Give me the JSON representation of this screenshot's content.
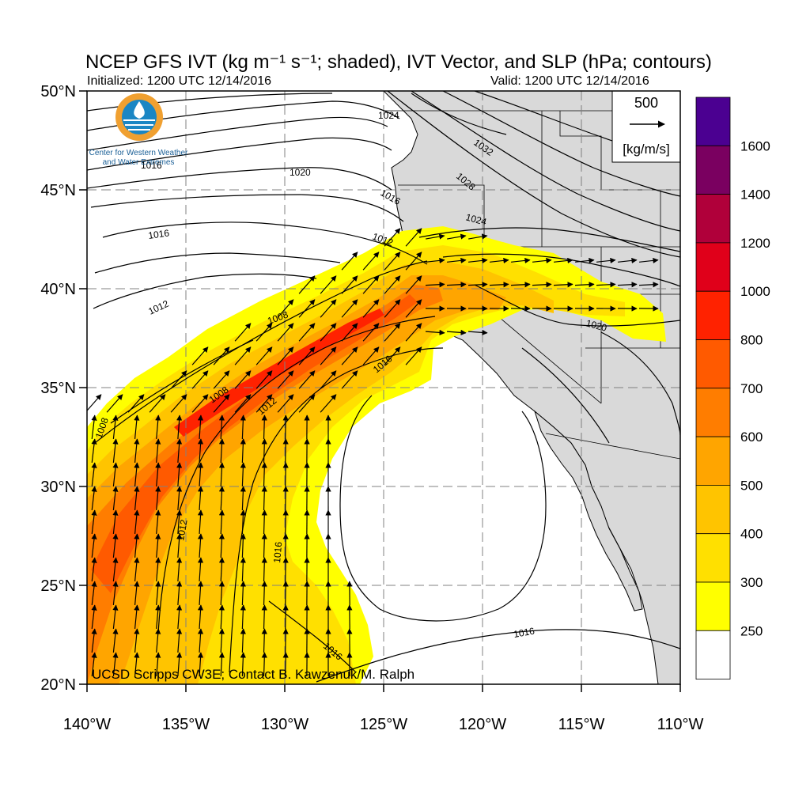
{
  "header": {
    "title": "NCEP GFS IVT (kg m⁻¹ s⁻¹; shaded), IVT Vector, and SLP (hPa; contours)",
    "initialized": "Initialized: 1200 UTC 12/14/2016",
    "valid": "Valid: 1200 UTC 12/14/2016"
  },
  "logo": {
    "line1": "Center for Western Weather",
    "line2": "and Water Extremes",
    "icon": "water-drop-sun-icon",
    "colors": {
      "ring": "#f0a030",
      "water": "#1a86c4",
      "text": "#1a5f96"
    }
  },
  "credit": "UCSD Scripps CW3E; Contact B. Kawzenuk/M. Ralph",
  "vector_key": {
    "value": "500",
    "unit": "[kg/m/s]"
  },
  "axes": {
    "lon_labels": [
      "140°W",
      "135°W",
      "130°W",
      "125°W",
      "120°W",
      "115°W",
      "110°W"
    ],
    "lat_labels": [
      "50°N",
      "45°N",
      "40°N",
      "35°N",
      "30°N",
      "25°N",
      "20°N"
    ],
    "lon_range": [
      -140,
      -110
    ],
    "lat_range": [
      20,
      50
    ],
    "grid": "dashed 5°"
  },
  "colorbar": {
    "labels": [
      "1600",
      "1400",
      "1200",
      "1000",
      "800",
      "700",
      "600",
      "500",
      "400",
      "300",
      "250"
    ],
    "colors": [
      "#4b0091",
      "#7a0060",
      "#b0003a",
      "#e0001a",
      "#ff2200",
      "#ff5a00",
      "#ff7d00",
      "#ffa500",
      "#ffc400",
      "#ffe000",
      "#ffff00",
      "#ffffff"
    ]
  },
  "slp_contour_labels": [
    "1024",
    "1032",
    "1028",
    "1024",
    "1020",
    "1016",
    "1016",
    "1012",
    "1012",
    "1008",
    "1008",
    "1008",
    "1012",
    "1016",
    "1012",
    "1016",
    "1016",
    "1016",
    "1020",
    "1016"
  ]
}
